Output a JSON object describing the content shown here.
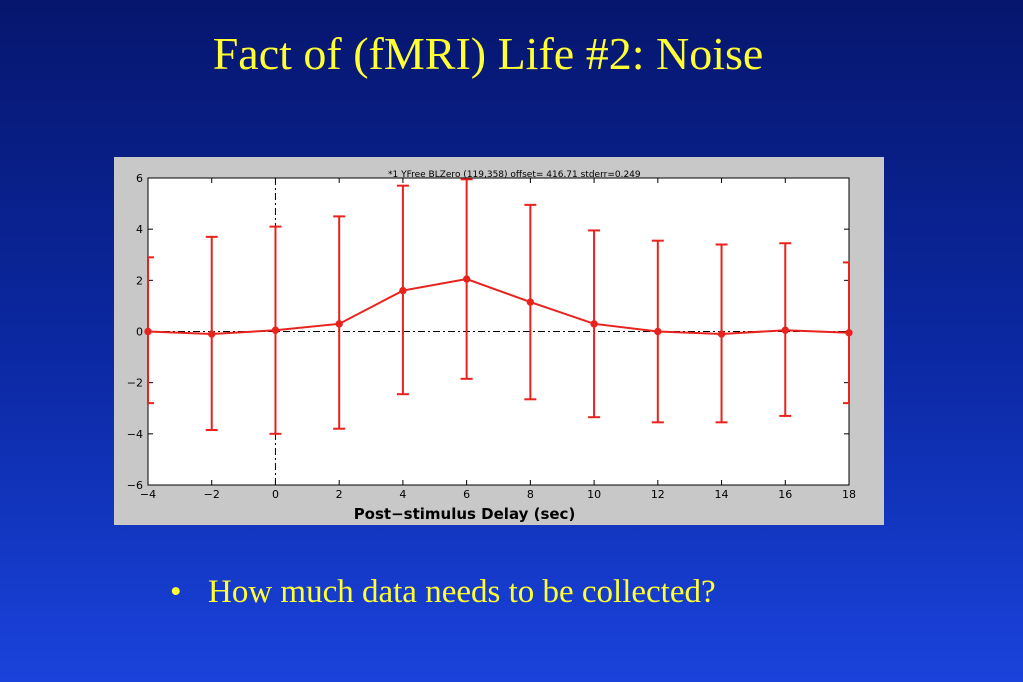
{
  "slide": {
    "title": "Fact of (fMRI) Life #2: Noise",
    "bullet_char": "•",
    "bullets": [
      "How much data needs to be collected?"
    ]
  },
  "colors": {
    "background_top": "#06166e",
    "background_bottom": "#1a43dc",
    "title_text": "#ffff33",
    "series": "#e8231d",
    "plot_background": "#ffffff",
    "frame_background": "#c8c8c8"
  },
  "chart_data": {
    "type": "line",
    "title": "*1 YFree BLZero (119,358)  offset= 416.71 stderr=0.249",
    "xlabel": "Post−stimulus Delay (sec)",
    "ylabel": "",
    "xlim": [
      -4,
      18
    ],
    "ylim": [
      -6,
      6
    ],
    "xticks": [
      -4,
      -2,
      0,
      2,
      4,
      6,
      8,
      10,
      12,
      14,
      16,
      18
    ],
    "yticks": [
      -6,
      -4,
      -2,
      0,
      2,
      4,
      6
    ],
    "grid": false,
    "reference_lines": {
      "x": 0,
      "y": 0,
      "style": "dash-dot"
    },
    "series": [
      {
        "x": [
          -4,
          -2,
          0,
          2,
          4,
          6,
          8,
          10,
          12,
          14,
          16,
          18
        ],
        "y": [
          0,
          -0.1,
          0.05,
          0.3,
          1.6,
          2.05,
          1.15,
          0.3,
          0,
          -0.1,
          0.05,
          -0.05
        ],
        "err_low": [
          -2.8,
          -3.85,
          -4.0,
          -3.8,
          -2.45,
          -1.85,
          -2.65,
          -3.35,
          -3.55,
          -3.55,
          -3.3,
          -2.8
        ],
        "err_high": [
          2.9,
          3.7,
          4.1,
          4.5,
          5.7,
          5.95,
          4.95,
          3.95,
          3.55,
          3.4,
          3.45,
          2.7
        ]
      }
    ]
  }
}
